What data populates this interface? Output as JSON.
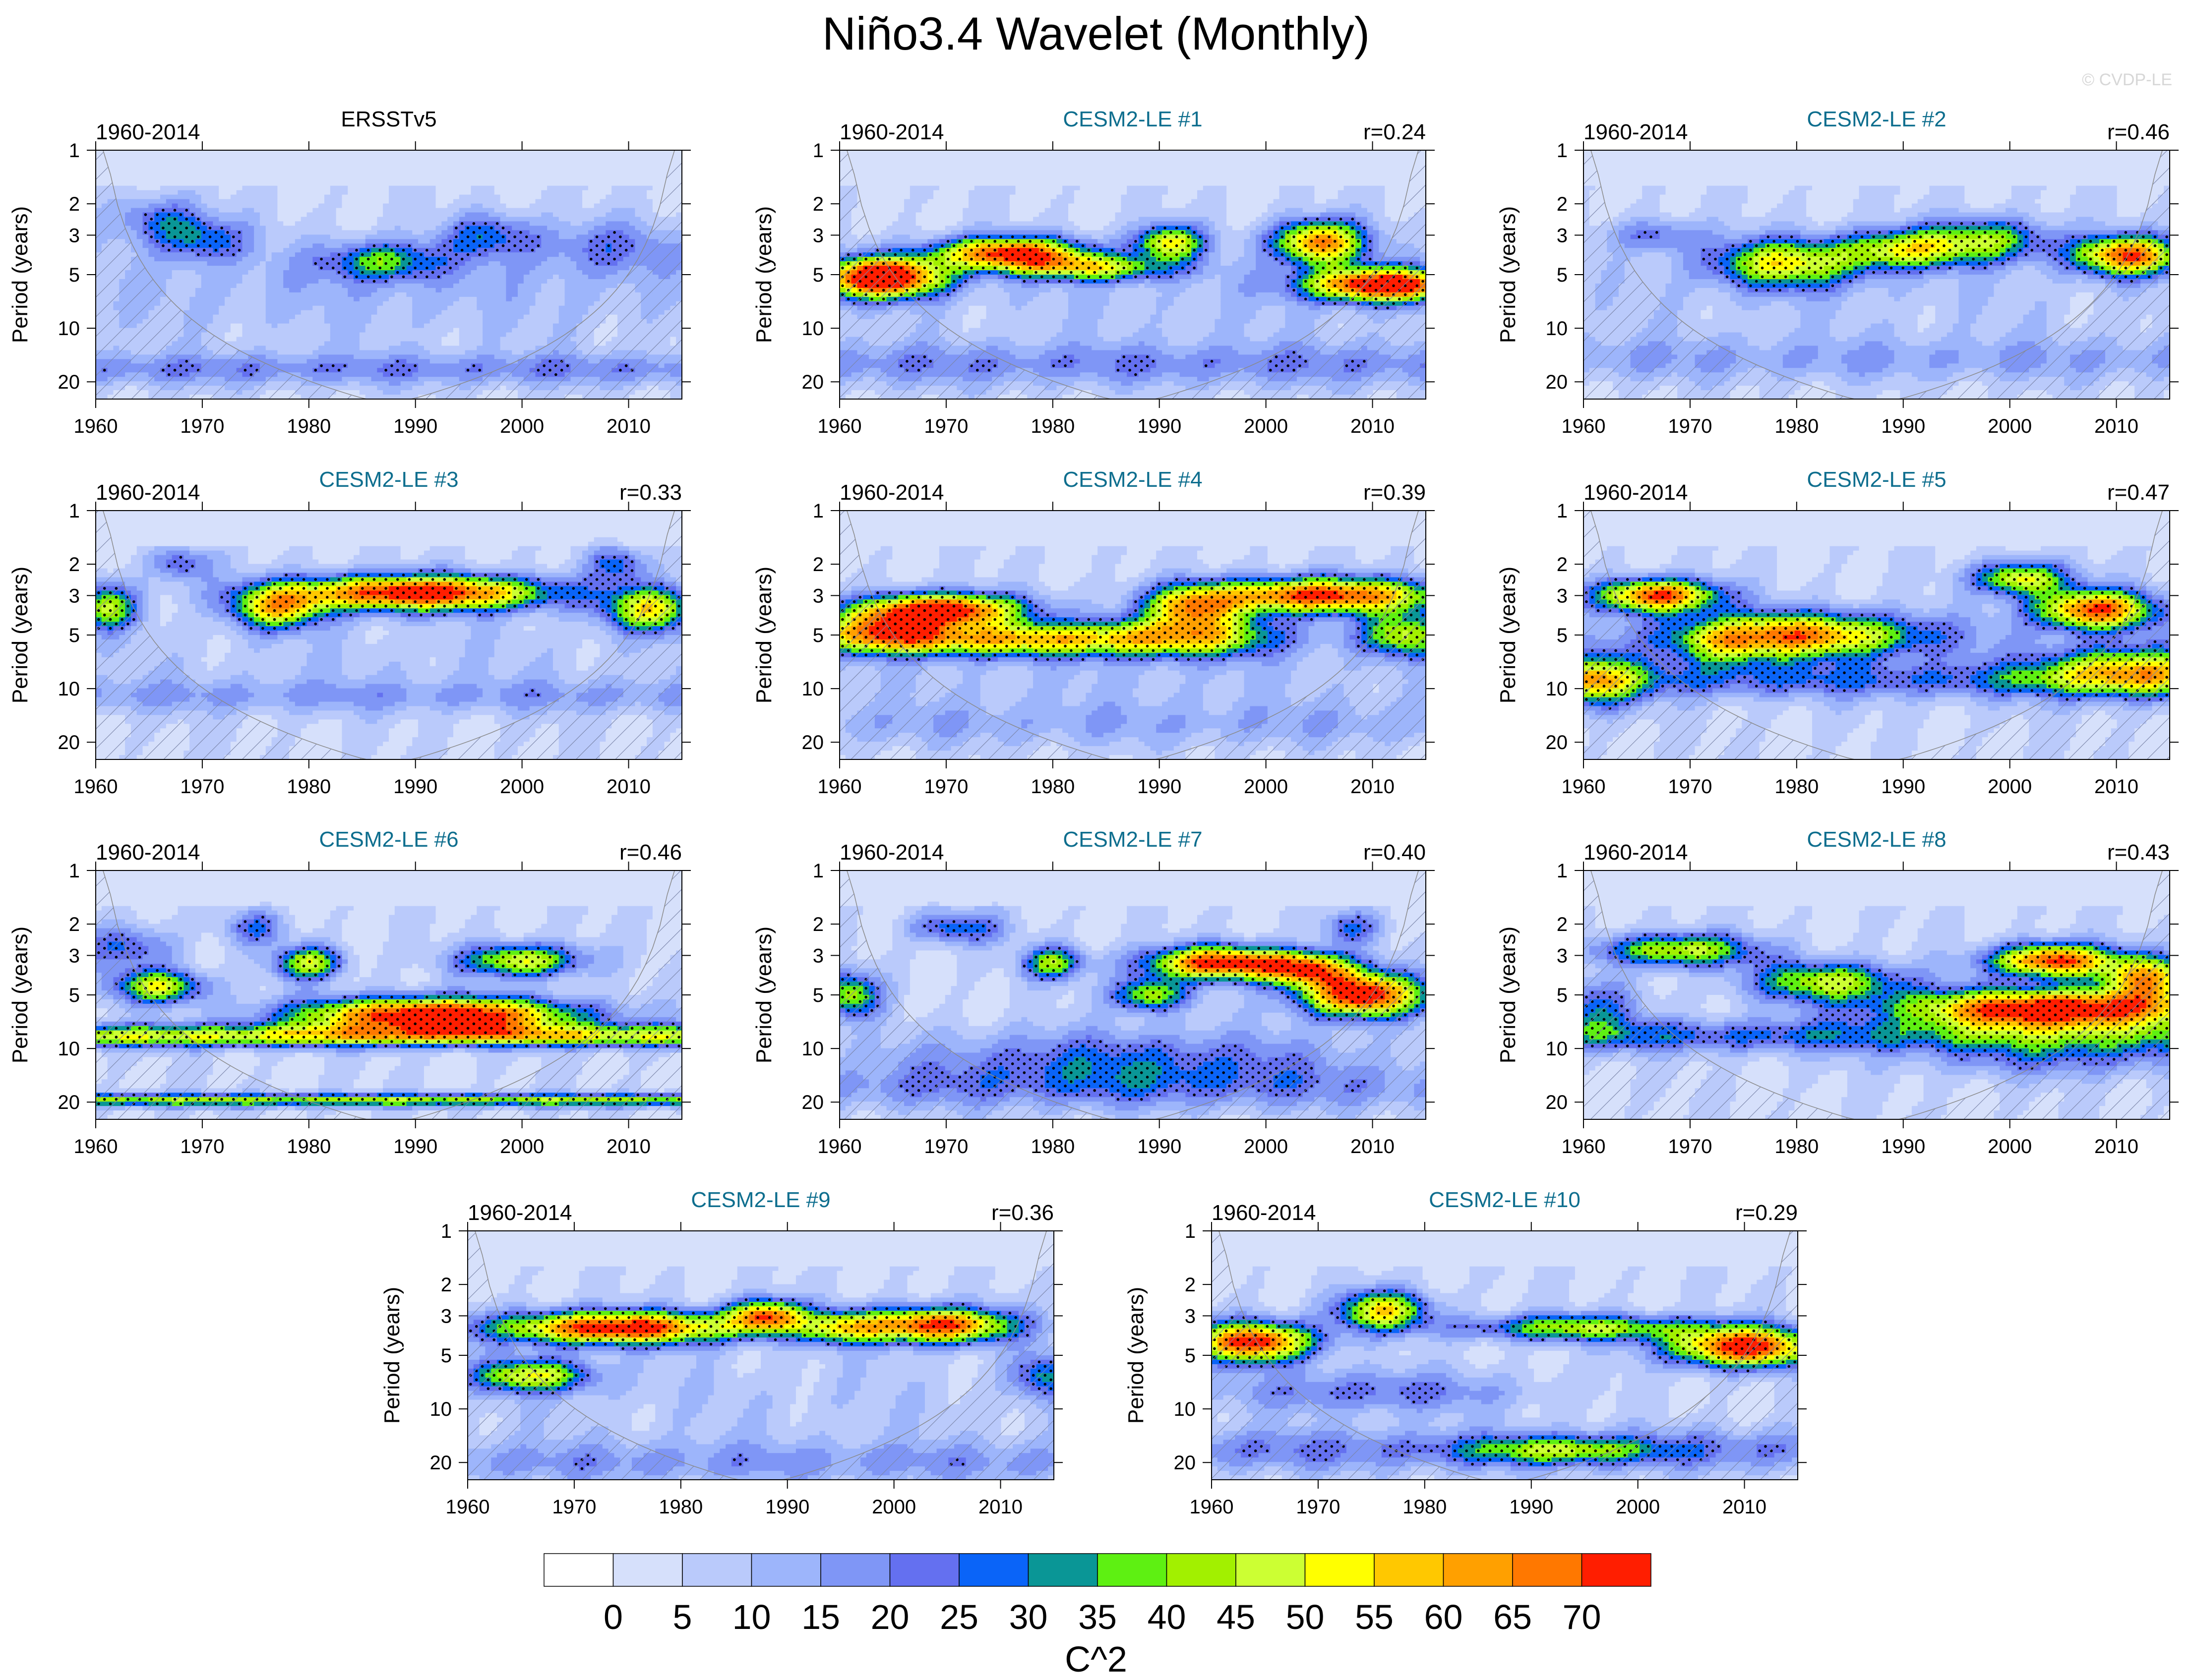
{
  "figure": {
    "title": "Niño3.4 Wavelet (Monthly)",
    "watermark": "© CVDP-LE",
    "colorbar_label": "C^2",
    "colorbar_ticks": [
      "0",
      "5",
      "10",
      "15",
      "20",
      "25",
      "30",
      "35",
      "40",
      "45",
      "50",
      "55",
      "60",
      "65",
      "70"
    ],
    "colorbar_colors": [
      "#ffffff",
      "#d6e0fb",
      "#bacafb",
      "#9db5fb",
      "#7f96f6",
      "#6470f0",
      "#0a64f8",
      "#0a9696",
      "#5ef012",
      "#a2f000",
      "#ccff33",
      "#ffff00",
      "#ffc800",
      "#ffa000",
      "#ff7800",
      "#ff1e00"
    ],
    "hatch_color": "#7a84a8",
    "title_color_obs": "#000000",
    "title_color_model": "#0e6e8e"
  },
  "chart_data": [
    {
      "type": "heatmap",
      "title": "ERSSTv5",
      "left_label": "1960-2014",
      "corr": "",
      "ylabel": "Period (years)",
      "xlabel": "",
      "xlim": [
        1960,
        2015
      ],
      "xticks": [
        1960,
        1970,
        1980,
        1990,
        2000,
        2010
      ],
      "ylim": [
        1,
        25
      ],
      "yticks": [
        1,
        2,
        3,
        5,
        10,
        20
      ],
      "blobs": [
        [
          1970,
          3.2,
          3,
          0.2,
          24
        ],
        [
          1987,
          4.2,
          4,
          0.18,
          30
        ],
        [
          1997,
          3.0,
          3,
          0.2,
          22
        ],
        [
          1966,
          2.4,
          3,
          0.2,
          20
        ],
        [
          1985,
          5.5,
          30,
          0.4,
          5
        ],
        [
          1990,
          8,
          28,
          0.5,
          3
        ],
        [
          2008,
          3.5,
          5,
          0.25,
          15
        ]
      ],
      "bands": [
        [
          17,
          0.15,
          14
        ]
      ]
    },
    {
      "type": "heatmap",
      "title": "CESM2-LE #1",
      "left_label": "1960-2014",
      "corr": "r=0.24",
      "ylabel": "Period (years)",
      "xlabel": "",
      "xlim": [
        1960,
        2015
      ],
      "xticks": [
        1960,
        1970,
        1980,
        1990,
        2000,
        2010
      ],
      "ylim": [
        1,
        25
      ],
      "yticks": [
        1,
        2,
        3,
        5,
        10,
        20
      ],
      "blobs": [
        [
          1964,
          5.2,
          4,
          0.18,
          85
        ],
        [
          1976,
          3.8,
          5,
          0.15,
          68
        ],
        [
          1984,
          4.6,
          5,
          0.12,
          40
        ],
        [
          1991,
          3.3,
          2.2,
          0.16,
          48
        ],
        [
          2005,
          3.3,
          3,
          0.2,
          62
        ],
        [
          2011,
          5.7,
          5,
          0.15,
          78
        ],
        [
          1995,
          7,
          25,
          0.45,
          5
        ]
      ],
      "bands": [
        [
          16,
          0.2,
          14
        ]
      ]
    },
    {
      "type": "heatmap",
      "title": "CESM2-LE #2",
      "left_label": "1960-2014",
      "corr": "r=0.46",
      "ylabel": "Period (years)",
      "xlabel": "",
      "xlim": [
        1960,
        2015
      ],
      "xticks": [
        1960,
        1970,
        1980,
        1990,
        2000,
        2010
      ],
      "ylim": [
        1,
        25
      ],
      "yticks": [
        1,
        2,
        3,
        5,
        10,
        20
      ],
      "blobs": [
        [
          1979,
          4.3,
          5,
          0.22,
          46
        ],
        [
          1990,
          3.6,
          4,
          0.18,
          42
        ],
        [
          1998,
          3.2,
          4,
          0.2,
          36
        ],
        [
          2011,
          3.9,
          3.5,
          0.18,
          65
        ],
        [
          1967,
          3,
          3,
          0.15,
          18
        ],
        [
          1985,
          7,
          30,
          0.45,
          4
        ]
      ],
      "bands": [
        [
          15,
          0.2,
          10
        ]
      ]
    },
    {
      "type": "heatmap",
      "title": "CESM2-LE #3",
      "left_label": "1960-2014",
      "corr": "r=0.33",
      "ylabel": "Period (years)",
      "xlabel": "",
      "xlim": [
        1960,
        2015
      ],
      "xticks": [
        1960,
        1970,
        1980,
        1990,
        2000,
        2010
      ],
      "ylim": [
        1,
        25
      ],
      "yticks": [
        1,
        2,
        3,
        5,
        10,
        20
      ],
      "blobs": [
        [
          1990,
          2.9,
          9,
          0.16,
          75
        ],
        [
          1977,
          3.6,
          3,
          0.18,
          45
        ],
        [
          2012,
          3.6,
          3,
          0.2,
          46
        ],
        [
          1961,
          3.5,
          2,
          0.2,
          40
        ],
        [
          1968,
          2.0,
          2,
          0.15,
          22
        ],
        [
          2009,
          2.0,
          2,
          0.15,
          22
        ],
        [
          1990,
          7,
          28,
          0.45,
          4
        ]
      ],
      "bands": [
        [
          11,
          0.15,
          10
        ]
      ]
    },
    {
      "type": "heatmap",
      "title": "CESM2-LE #4",
      "left_label": "1960-2014",
      "corr": "r=0.39",
      "ylabel": "Period (years)",
      "xlabel": "",
      "xlim": [
        1960,
        2015
      ],
      "xticks": [
        1960,
        1970,
        1980,
        1990,
        2000,
        2010
      ],
      "ylim": [
        1,
        25
      ],
      "yticks": [
        1,
        2,
        3,
        5,
        10,
        20
      ],
      "blobs": [
        [
          1970,
          3.6,
          5,
          0.15,
          72
        ],
        [
          1975,
          5.3,
          12,
          0.15,
          52
        ],
        [
          2005,
          3.0,
          8,
          0.16,
          70
        ],
        [
          1993,
          3.5,
          3,
          0.18,
          42
        ],
        [
          1964,
          4.5,
          4,
          0.2,
          40
        ],
        [
          2013,
          5,
          3,
          0.2,
          40
        ],
        [
          1993,
          5,
          6,
          0.2,
          38
        ],
        [
          1988,
          9,
          30,
          0.4,
          5
        ]
      ],
      "bands": [
        [
          16,
          0.2,
          8
        ]
      ]
    },
    {
      "type": "heatmap",
      "title": "CESM2-LE #5",
      "left_label": "1960-2014",
      "corr": "r=0.47",
      "ylabel": "Period (years)",
      "xlabel": "",
      "xlim": [
        1960,
        2015
      ],
      "xticks": [
        1960,
        1970,
        1980,
        1990,
        2000,
        2010
      ],
      "ylim": [
        1,
        25
      ],
      "yticks": [
        1,
        2,
        3,
        5,
        10,
        20
      ],
      "blobs": [
        [
          1967,
          3.0,
          4,
          0.15,
          68
        ],
        [
          1980,
          5,
          8,
          0.2,
          58
        ],
        [
          2008,
          3.6,
          4,
          0.18,
          66
        ],
        [
          2001,
          2.4,
          3,
          0.15,
          48
        ],
        [
          1961,
          9,
          3,
          0.25,
          42
        ],
        [
          2011,
          8,
          6,
          0.22,
          44
        ],
        [
          1973,
          6,
          3,
          0.2,
          20
        ],
        [
          1990,
          7,
          25,
          0.4,
          6
        ]
      ],
      "bands": [
        [
          9,
          0.15,
          16
        ]
      ]
    },
    {
      "type": "heatmap",
      "title": "CESM2-LE #6",
      "left_label": "1960-2014",
      "corr": "r=0.46",
      "ylabel": "Period (years)",
      "xlabel": "",
      "xlim": [
        1960,
        2015
      ],
      "xticks": [
        1960,
        1970,
        1980,
        1990,
        2000,
        2010
      ],
      "ylim": [
        1,
        25
      ],
      "yticks": [
        1,
        2,
        3,
        5,
        10,
        20
      ],
      "blobs": [
        [
          1992,
          6.5,
          9,
          0.16,
          80
        ],
        [
          2000,
          3.2,
          4,
          0.15,
          46
        ],
        [
          1966,
          4.5,
          3,
          0.15,
          45
        ],
        [
          1980,
          3.3,
          2.2,
          0.15,
          44
        ],
        [
          1963,
          2.7,
          3,
          0.2,
          22
        ],
        [
          1975,
          2.1,
          2,
          0.15,
          20
        ]
      ],
      "bands": [
        [
          8.5,
          0.1,
          44
        ],
        [
          19.5,
          0.06,
          38
        ]
      ]
    },
    {
      "type": "heatmap",
      "title": "CESM2-LE #7",
      "left_label": "1960-2014",
      "corr": "r=0.40",
      "ylabel": "Period (years)",
      "xlabel": "",
      "xlim": [
        1960,
        2015
      ],
      "xticks": [
        1960,
        1970,
        1980,
        1990,
        2000,
        2010
      ],
      "ylim": [
        1,
        25
      ],
      "yticks": [
        1,
        2,
        3,
        5,
        10,
        20
      ],
      "blobs": [
        [
          1996,
          3.3,
          5,
          0.15,
          72
        ],
        [
          2009,
          5,
          4,
          0.2,
          76
        ],
        [
          1989,
          5,
          2.5,
          0.15,
          40
        ],
        [
          1980,
          3.3,
          2,
          0.15,
          38
        ],
        [
          2004,
          3.6,
          3,
          0.15,
          50
        ],
        [
          1961,
          5,
          2,
          0.2,
          38
        ],
        [
          1971,
          2.1,
          3,
          0.15,
          25
        ],
        [
          1987,
          12,
          15,
          0.3,
          22
        ],
        [
          2008,
          2.1,
          2,
          0.15,
          20
        ]
      ],
      "bands": [
        [
          17,
          0.2,
          10
        ]
      ]
    },
    {
      "type": "heatmap",
      "title": "CESM2-LE #8",
      "left_label": "1960-2014",
      "corr": "r=0.43",
      "ylabel": "Period (years)",
      "xlabel": "",
      "xlim": [
        1960,
        2015
      ],
      "xticks": [
        1960,
        1970,
        1980,
        1990,
        2000,
        2010
      ],
      "ylim": [
        1,
        25
      ],
      "yticks": [
        1,
        2,
        3,
        5,
        10,
        20
      ],
      "blobs": [
        [
          2004,
          6,
          10,
          0.18,
          78
        ],
        [
          2004,
          3.2,
          4,
          0.15,
          70
        ],
        [
          1969,
          2.8,
          5,
          0.15,
          44
        ],
        [
          1983,
          4.2,
          5,
          0.18,
          42
        ],
        [
          2013,
          4,
          3,
          0.2,
          52
        ],
        [
          2005,
          11,
          10,
          0.2,
          18
        ],
        [
          1961,
          6,
          3,
          0.25,
          22
        ]
      ],
      "bands": [
        [
          8.5,
          0.15,
          22
        ]
      ]
    },
    {
      "type": "heatmap",
      "title": "CESM2-LE #9",
      "left_label": "1960-2014",
      "corr": "r=0.36",
      "ylabel": "Period (years)",
      "xlabel": "",
      "xlim": [
        1960,
        2015
      ],
      "xticks": [
        1960,
        1970,
        1980,
        1990,
        2000,
        2010
      ],
      "ylim": [
        1,
        25
      ],
      "yticks": [
        1,
        2,
        3,
        5,
        10,
        20
      ],
      "blobs": [
        [
          1974,
          3.5,
          8,
          0.15,
          74
        ],
        [
          1988,
          3.0,
          2.5,
          0.15,
          58
        ],
        [
          2004,
          3.4,
          5,
          0.16,
          70
        ],
        [
          1966,
          6.5,
          4,
          0.15,
          44
        ],
        [
          1995,
          3.5,
          3,
          0.15,
          35
        ],
        [
          2014,
          6.5,
          2,
          0.2,
          25
        ],
        [
          1988,
          9,
          30,
          0.45,
          4
        ]
      ],
      "bands": [
        [
          20,
          0.2,
          12
        ]
      ]
    },
    {
      "type": "heatmap",
      "title": "CESM2-LE #10",
      "left_label": "1960-2014",
      "corr": "r=0.29",
      "ylabel": "Period (years)",
      "xlabel": "",
      "xlim": [
        1960,
        2015
      ],
      "xticks": [
        1960,
        1970,
        1980,
        1990,
        2000,
        2010
      ],
      "ylim": [
        1,
        25
      ],
      "yticks": [
        1,
        2,
        3,
        5,
        10,
        20
      ],
      "blobs": [
        [
          1964,
          4.2,
          4,
          0.18,
          72
        ],
        [
          1976,
          2.8,
          3,
          0.18,
          50
        ],
        [
          2010,
          4.5,
          5,
          0.18,
          72
        ],
        [
          1995,
          3.5,
          8,
          0.12,
          40
        ],
        [
          1993,
          17,
          6,
          0.12,
          28
        ],
        [
          1975,
          8,
          10,
          0.2,
          18
        ]
      ],
      "bands": [
        [
          17,
          0.2,
          16
        ]
      ]
    }
  ]
}
